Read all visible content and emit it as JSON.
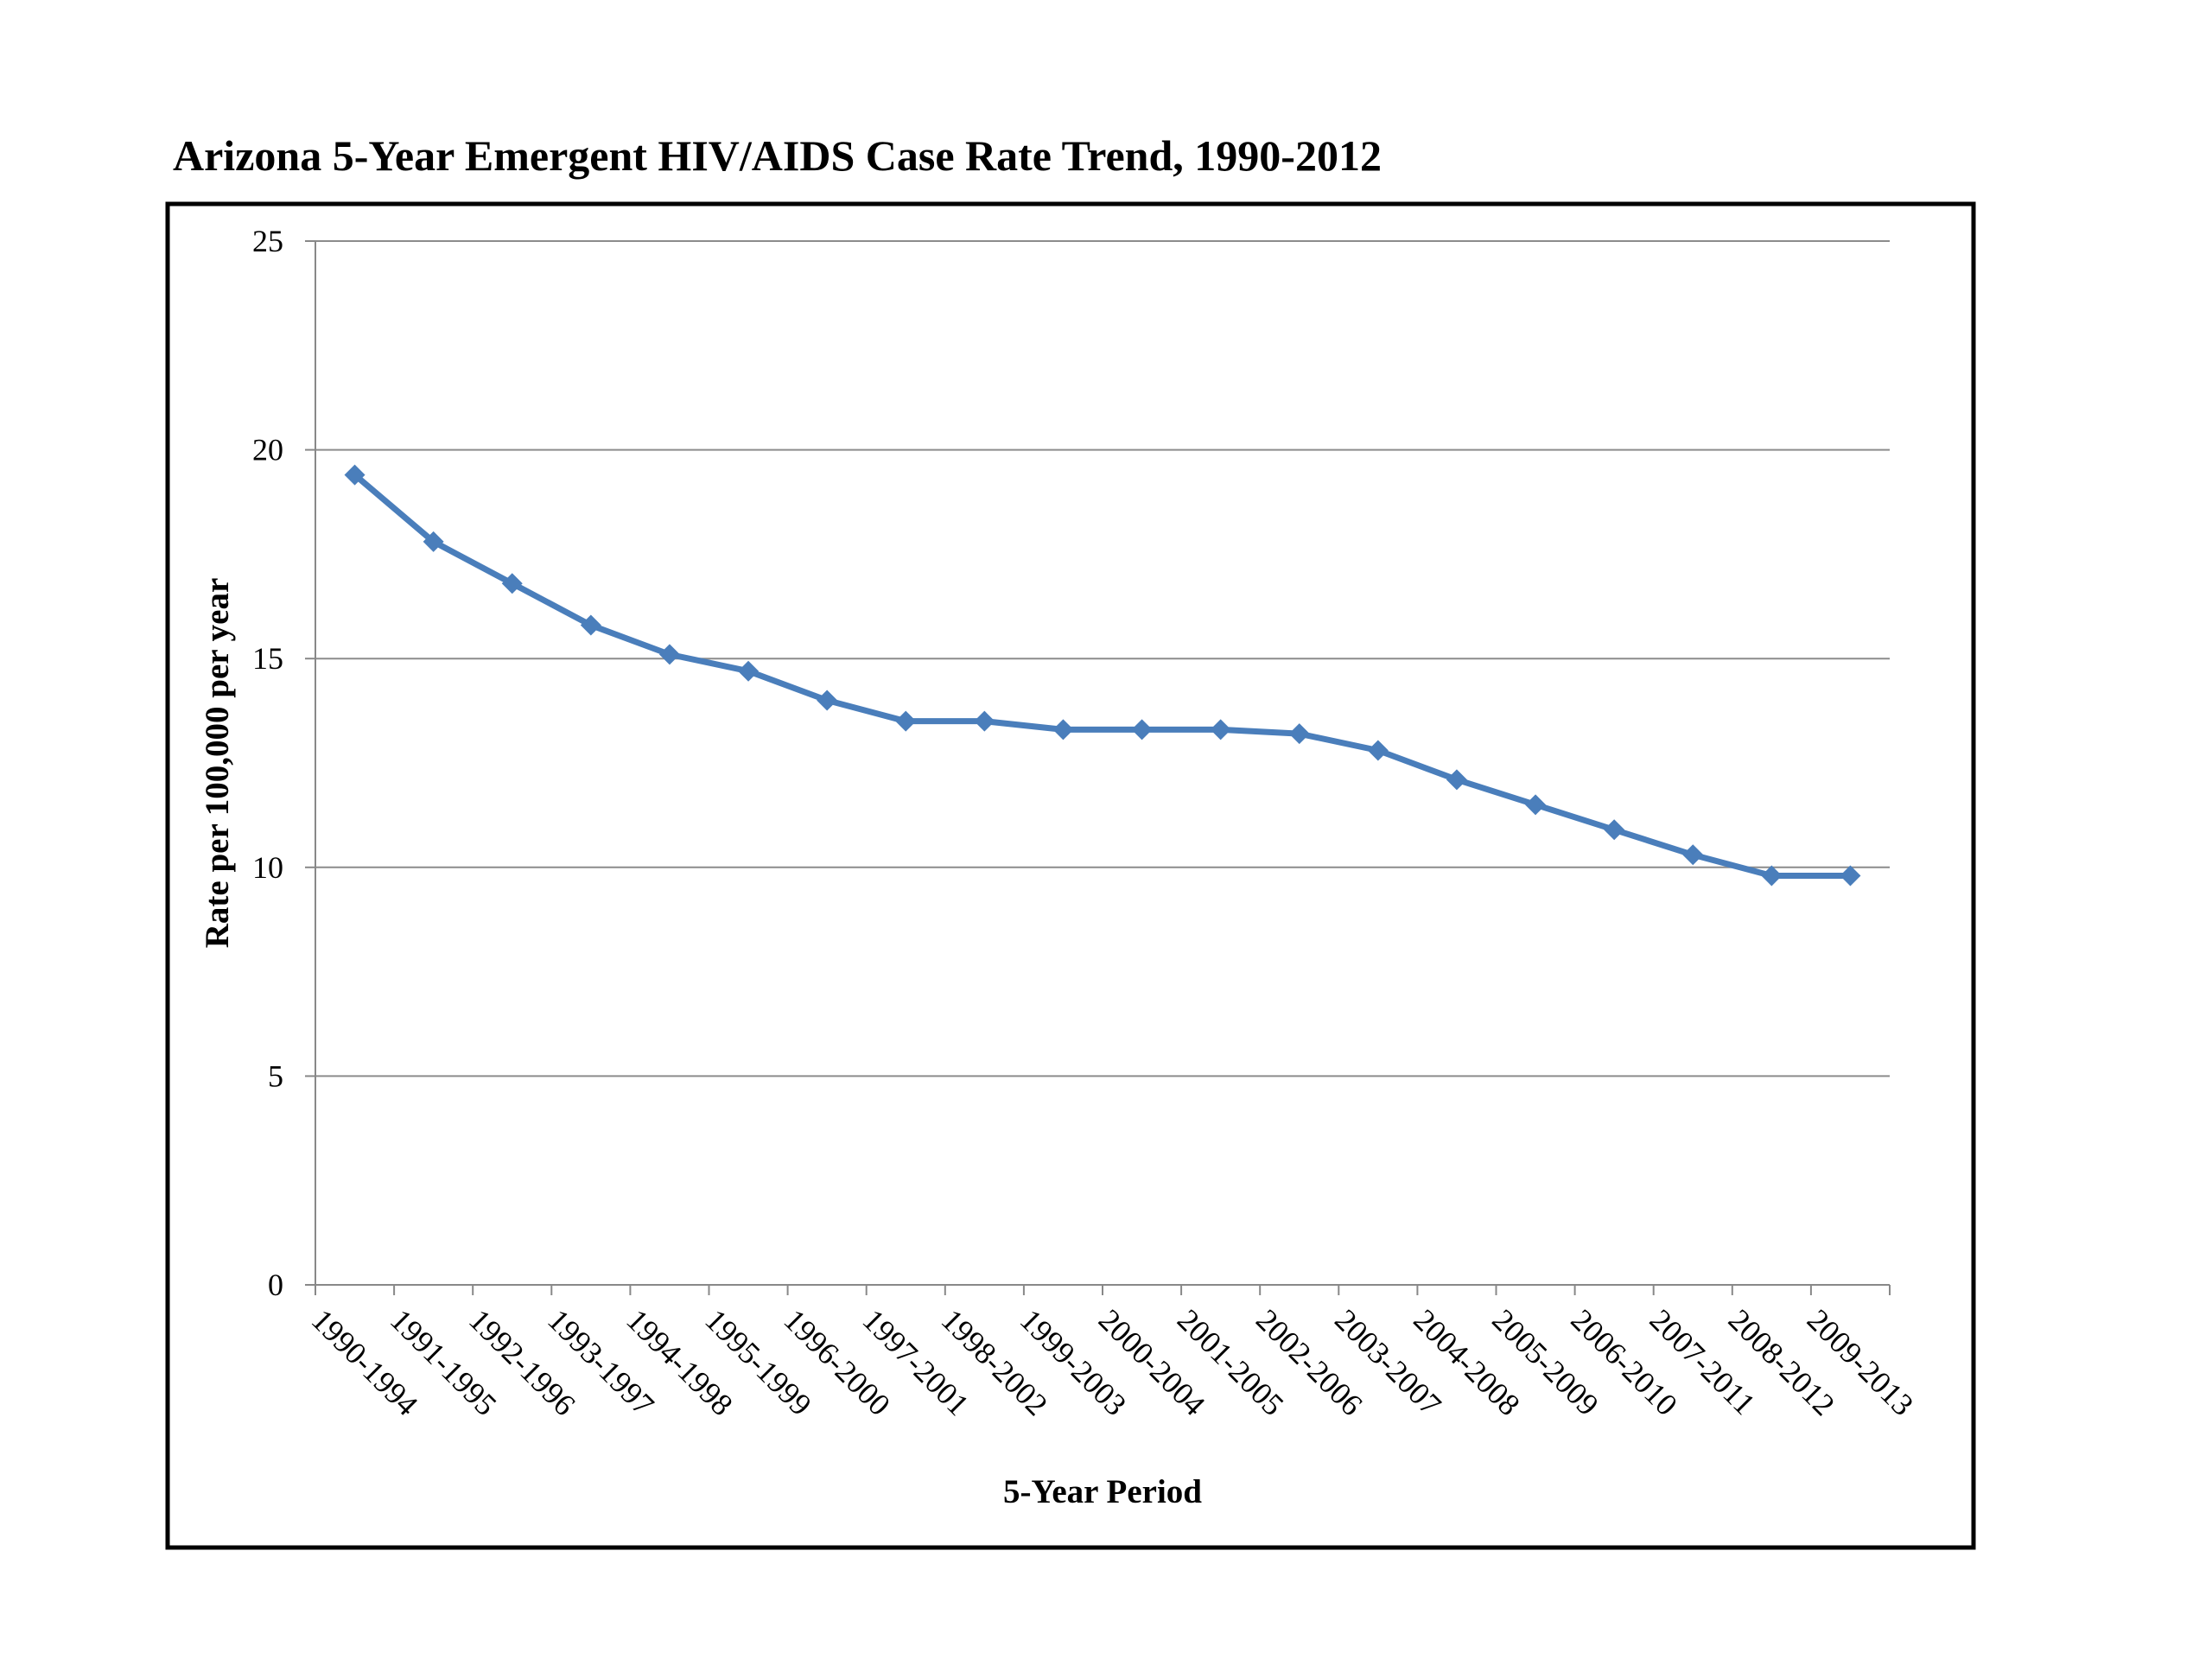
{
  "chart_data": {
    "type": "line",
    "title": "Arizona 5-Year Emergent HIV/AIDS Case Rate Trend, 1990-2012",
    "xlabel": "5-Year Period",
    "ylabel": "Rate per 100,000 per year",
    "ylim": [
      0,
      25
    ],
    "yticks": [
      0,
      5,
      10,
      15,
      20,
      25
    ],
    "grid": true,
    "legend": "none",
    "categories": [
      "1990-1994",
      "1991-1995",
      "1992-1996",
      "1993-1997",
      "1994-1998",
      "1995-1999",
      "1996-2000",
      "1997-2001",
      "1998-2002",
      "1999-2003",
      "2000-2004",
      "2001-2005",
      "2002-2006",
      "2003-2007",
      "2004-2008",
      "2005-2009",
      "2006-2010",
      "2007-2011",
      "2008-2012",
      "2009-2013"
    ],
    "series": [
      {
        "name": "",
        "color": "#4a7ebb",
        "marker": "diamond",
        "values": [
          19.4,
          17.8,
          16.8,
          15.8,
          15.1,
          14.7,
          14.0,
          13.5,
          13.5,
          13.3,
          13.3,
          13.3,
          13.2,
          12.8,
          12.1,
          11.5,
          10.9,
          10.3,
          9.8,
          9.8
        ]
      }
    ]
  }
}
